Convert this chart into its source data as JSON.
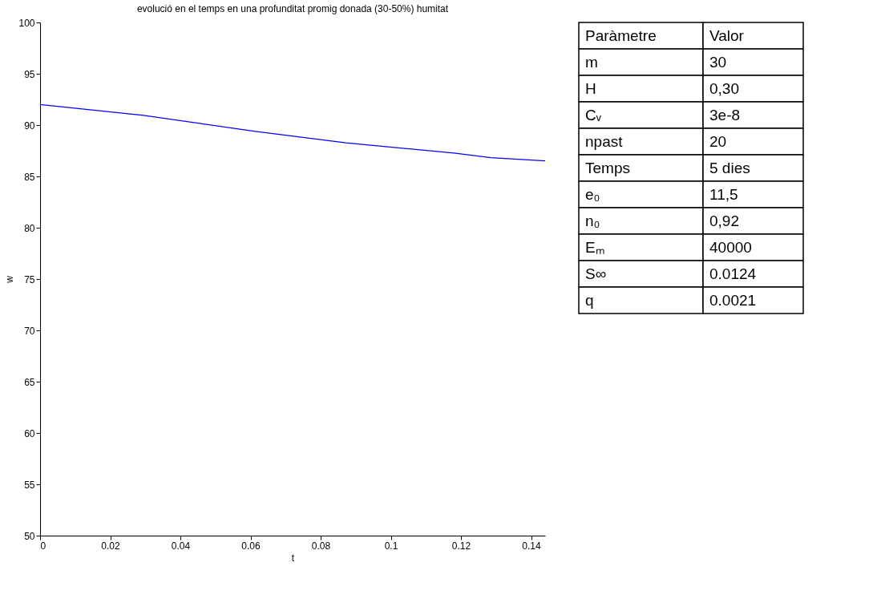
{
  "chart_data": [
    {
      "type": "line",
      "title": "evolució en el temps en una profunditat promig donada (30-50%) humitat",
      "xlabel": "t",
      "ylabel": "w",
      "x": [
        0,
        0.0295,
        0.0614,
        0.0872,
        0.118,
        0.1285,
        0.144
      ],
      "series": [
        {
          "color": "#0000ff",
          "values": [
            92.0,
            90.94,
            89.39,
            88.27,
            87.27,
            86.83,
            86.51
          ]
        }
      ],
      "xlim": [
        0,
        0.144
      ],
      "xticks": [
        0,
        0.02,
        0.04,
        0.06,
        0.08,
        0.1,
        0.12,
        0.14
      ],
      "ylim": [
        50,
        100
      ],
      "yticks": [
        50,
        55,
        60,
        65,
        70,
        75,
        80,
        85,
        90,
        95,
        100
      ],
      "grid": false,
      "legend": false,
      "marker": "none",
      "line_style": "solid"
    },
    {
      "type": "other",
      "annotations": [
        "Paràmetre",
        "Valor",
        "m",
        "30",
        "H",
        "0,30",
        "Cᵥ",
        "3e-8",
        "npast",
        "20",
        "Temps",
        "5 dies",
        "e₀",
        "11,5",
        "n₀",
        "0,92",
        "Eₘ",
        "40000",
        "S∞",
        "0.0124",
        "q",
        "0.0021"
      ]
    }
  ]
}
